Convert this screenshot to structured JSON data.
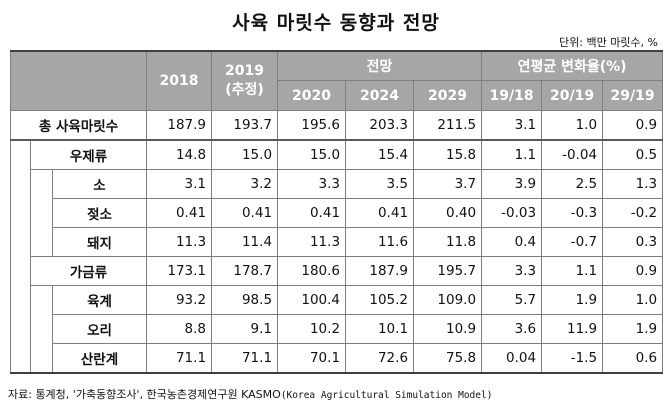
{
  "title": "사육 마릿수 동향과 전망",
  "unit": "단위: 백만 마릿수, %",
  "header": {
    "y2018": "2018",
    "y2019": "2019",
    "y2019_note": "(추정)",
    "outlook": "전망",
    "growth": "연평균 변화율(%)",
    "y2020": "2020",
    "y2024": "2024",
    "y2029": "2029",
    "g1918": "19/18",
    "g2019": "20/19",
    "g2919": "29/19"
  },
  "rows": [
    {
      "label": "총 사육마릿수",
      "values": [
        "187.9",
        "193.7",
        "195.6",
        "203.3",
        "211.5",
        "3.1",
        "1.0",
        "0.9"
      ]
    },
    {
      "label": "우제류",
      "values": [
        "14.8",
        "15.0",
        "15.0",
        "15.4",
        "15.8",
        "1.1",
        "-0.04",
        "0.5"
      ]
    },
    {
      "label": "소",
      "values": [
        "3.1",
        "3.2",
        "3.3",
        "3.5",
        "3.7",
        "3.9",
        "2.5",
        "1.3"
      ]
    },
    {
      "label": "젖소",
      "values": [
        "0.41",
        "0.41",
        "0.41",
        "0.41",
        "0.40",
        "-0.03",
        "-0.3",
        "-0.2"
      ]
    },
    {
      "label": "돼지",
      "values": [
        "11.3",
        "11.4",
        "11.3",
        "11.6",
        "11.8",
        "0.4",
        "-0.7",
        "0.3"
      ]
    },
    {
      "label": "가금류",
      "values": [
        "173.1",
        "178.7",
        "180.6",
        "187.9",
        "195.7",
        "3.3",
        "1.1",
        "0.9"
      ]
    },
    {
      "label": "육계",
      "values": [
        "93.2",
        "98.5",
        "100.4",
        "105.2",
        "109.0",
        "5.7",
        "1.9",
        "1.0"
      ]
    },
    {
      "label": "오리",
      "values": [
        "8.8",
        "9.1",
        "10.2",
        "10.1",
        "10.9",
        "3.6",
        "11.9",
        "1.9"
      ]
    },
    {
      "label": "산란계",
      "values": [
        "71.1",
        "71.1",
        "70.1",
        "72.6",
        "75.8",
        "0.04",
        "-1.5",
        "0.6"
      ]
    }
  ],
  "source": "자료: 통계청, '가축동향조사', 한국농촌경제연구원 KASMO",
  "source_eng": "(Korea Agricultural Simulation Model)"
}
